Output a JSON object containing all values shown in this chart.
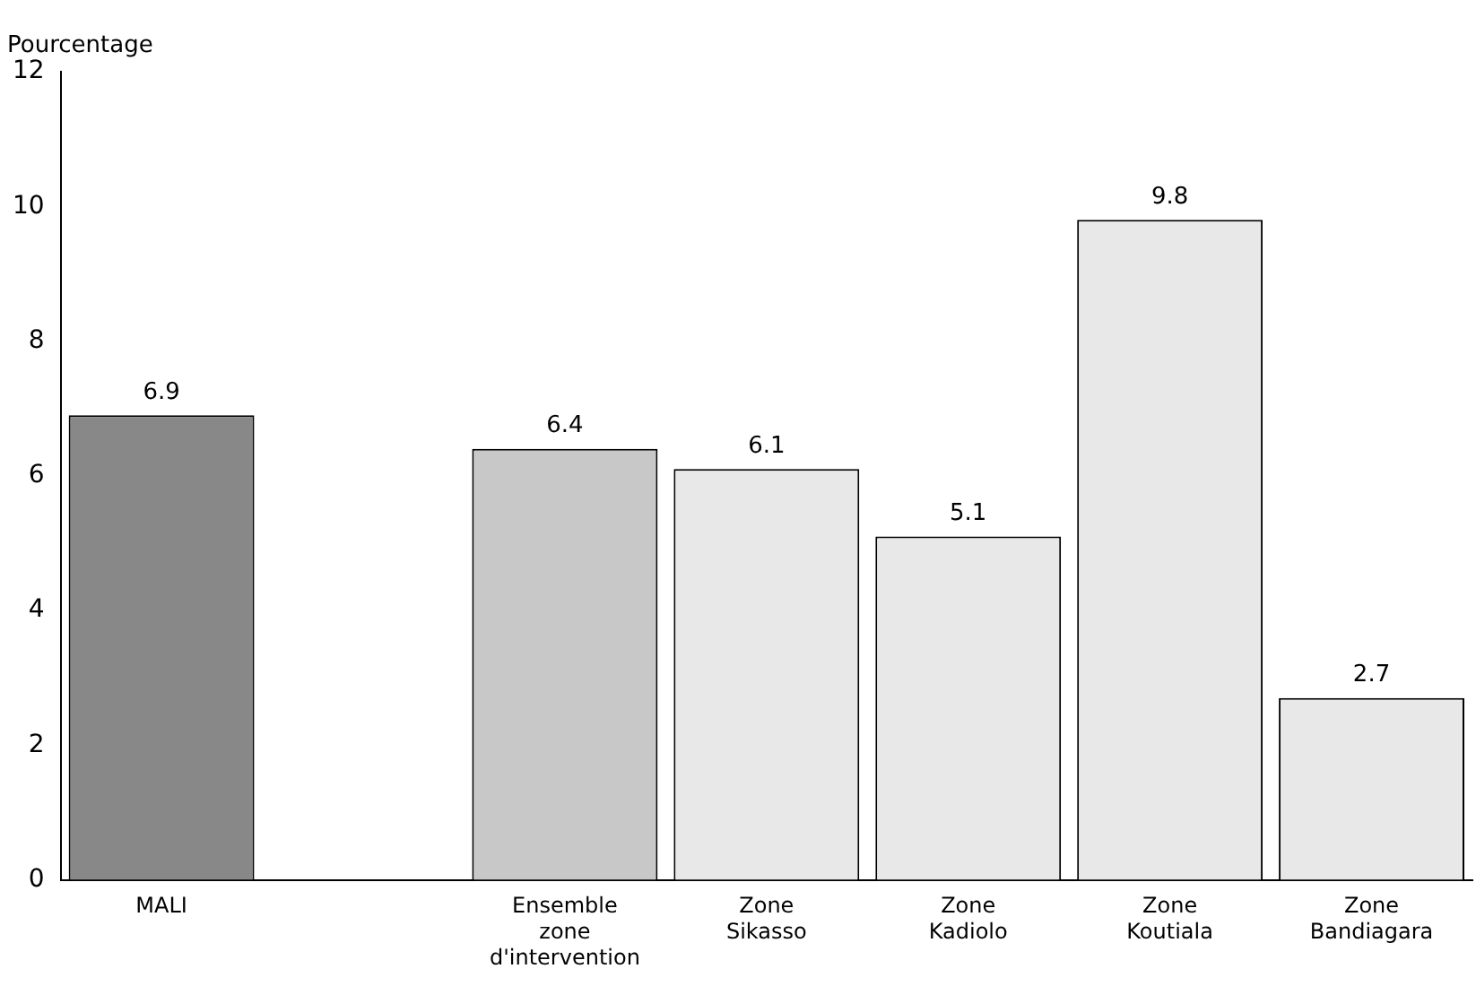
{
  "chart_data": {
    "type": "bar",
    "ylabel": "Pourcentage",
    "categories": [
      "MALI",
      null,
      "Ensemble zone d'intervention",
      "Zone Sikasso",
      "Zone Kadiolo",
      "Zone Koutiala",
      "Zone Bandiagara"
    ],
    "values": [
      6.9,
      null,
      6.4,
      6.1,
      5.1,
      9.8,
      2.7
    ],
    "colors": [
      "#888888",
      "#ffffff",
      "#c8c8c8",
      "#e8e8e8",
      "#e8e8e8",
      "#e8e8e8",
      "#e8e8e8"
    ],
    "ylim": [
      0,
      12
    ],
    "yticks": [
      0,
      2,
      4,
      6,
      8,
      10,
      12
    ],
    "grid": false,
    "legend": false,
    "data_labels": true
  }
}
